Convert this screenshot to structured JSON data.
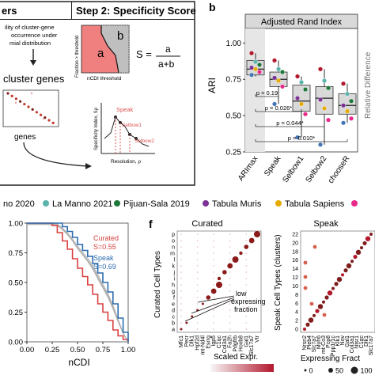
{
  "panel_a": {
    "header_left": "ers",
    "step2_title": "Step 2: Specificity Score",
    "text_line1": "ility of cluster-gene",
    "text_line2": "occurrence under",
    "text_line3": "mial distribution",
    "cluster_genes": "cluster genes",
    "genes_label": "genes",
    "box_a": "a",
    "box_b": "b",
    "box_y_axis": "Fraction > threshold",
    "box_x_axis": "nCDI threshold",
    "formula_lhs": "S =",
    "formula_num": "a",
    "formula_den": "a+b",
    "mini_y_axis": "Specificity Index, Sρ",
    "mini_x_axis": "Resolution, ρ",
    "s_peak": "Speak",
    "s_elbow1": "Selbow1",
    "s_elbow2": "Selbow2"
  },
  "panel_b": {
    "letter": "b",
    "facet_title": "Adjusted Rand Index",
    "ylabel": "ARI",
    "right_cut_label": "Relative Difference",
    "pvals": [
      "p = 0.19",
      "p = 0.026*",
      "p = 0.044*",
      "p = 0.010*"
    ]
  },
  "legend": {
    "items": [
      {
        "label": "no 2020",
        "color": "#b2182b"
      },
      {
        "label": "La Manno 2021",
        "color": "#5ab4ac"
      },
      {
        "label": "Pijuan-Sala 2019",
        "color": "#1b7837"
      },
      {
        "label": "Tabula Muris",
        "color": "#7b3294"
      },
      {
        "label": "Tabula Sapiens",
        "color": "#e6ab02"
      },
      {
        "label": "",
        "color": "#e7298a"
      }
    ]
  },
  "panel_e": {
    "xlabel": "nCDI",
    "curated_label": "Curated",
    "curated_s": "S=0.55",
    "speak_label": "Speak",
    "speak_s": "S=0.69",
    "curated_color": "#d94040",
    "speak_color": "#2b6cb0"
  },
  "panel_f": {
    "letter": "f",
    "title_left": "Curated",
    "title_right": "Speak",
    "ylabel_left": "Curated Cell Types",
    "ylabel_right": "Speak Cell Types (clusters)",
    "annotation": "low expressing fraction",
    "left_y_ticks": [
      "p",
      "o",
      "n",
      "m",
      "l",
      "k",
      "j",
      "i",
      "h",
      "g",
      "f",
      "e",
      "d",
      "c",
      "b",
      "a"
    ],
    "right_y_ticks": [
      "22",
      "20",
      "18",
      "16",
      "14",
      "12",
      "10",
      "8",
      "6",
      "4",
      "2",
      "0"
    ],
    "left_genes": [
      "Mfc1",
      "Pecr",
      "Dlk1",
      "Hpf2d",
      "mt-Nd4l",
      "Esrrg",
      "Igp5",
      "C1qc",
      "Col3a1",
      "Fa2h",
      "Pdgfrb",
      "Hoxb8",
      "Gal1",
      "Slc17a7",
      "Vtr"
    ],
    "right_genes": [
      "Nrsn2",
      "Pleb4",
      "Slc7a7",
      "Myh6",
      "mt-Co3",
      "Pcp8",
      "Ppp1r1c",
      "Klk1",
      "Nov",
      "Gal1",
      "Col3a1",
      "Ntsr1",
      "C1qc",
      "Dlk1",
      "Slc17a7"
    ],
    "legend_scaled_title": "Scaled Expr.",
    "legend_size_title": "Expressing Fract",
    "size_labels": [
      "0",
      "50",
      "100"
    ]
  },
  "chart_data": [
    {
      "type": "box",
      "title": "Adjusted Rand Index",
      "ylabel": "ARI",
      "ylim": [
        0.25,
        1.1
      ],
      "categories": [
        "ARImax",
        "Speak",
        "Selbow1",
        "Selbow2",
        "chooseR"
      ],
      "boxes": [
        {
          "min": 0.77,
          "q1": 0.78,
          "median": 0.82,
          "q3": 0.88,
          "max": 0.93
        },
        {
          "min": 0.58,
          "q1": 0.7,
          "median": 0.75,
          "q3": 0.8,
          "max": 0.88
        },
        {
          "min": 0.35,
          "q1": 0.53,
          "median": 0.6,
          "q3": 0.71,
          "max": 0.77
        },
        {
          "min": 0.3,
          "q1": 0.51,
          "median": 0.62,
          "q3": 0.7,
          "max": 0.82
        },
        {
          "min": 0.45,
          "q1": 0.51,
          "median": 0.57,
          "q3": 0.65,
          "max": 0.72
        }
      ],
      "points": [
        [
          0.93,
          0.87,
          0.85,
          0.83,
          0.82,
          0.8,
          0.78
        ],
        [
          0.88,
          0.82,
          0.8,
          0.76,
          0.74,
          0.7,
          0.58
        ],
        [
          0.77,
          0.73,
          0.68,
          0.62,
          0.58,
          0.51,
          0.35
        ],
        [
          0.82,
          0.74,
          0.69,
          0.61,
          0.55,
          0.47,
          0.3
        ],
        [
          0.72,
          0.65,
          0.6,
          0.57,
          0.53,
          0.48,
          0.45
        ]
      ],
      "yticks": [
        0.25,
        0.5,
        0.75,
        1.0
      ]
    },
    {
      "type": "line",
      "xlabel": "nCDI",
      "xlim": [
        0,
        1
      ],
      "ylim": [
        0,
        1
      ],
      "xticks": [
        0.0,
        0.25,
        0.5,
        0.75,
        1.0
      ],
      "yticks": [
        0.0,
        0.25,
        0.5,
        0.75,
        1.0
      ],
      "series": [
        {
          "name": "Curated",
          "x": [
            0,
            0.05,
            0.1,
            0.15,
            0.2,
            0.25,
            0.3,
            0.35,
            0.4,
            0.45,
            0.5,
            0.55,
            0.6,
            0.65,
            0.7,
            0.75,
            0.8,
            0.85,
            0.9,
            0.95,
            1.0
          ],
          "y": [
            1,
            1,
            1,
            1,
            1,
            0.98,
            0.92,
            0.85,
            0.78,
            0.7,
            0.62,
            0.55,
            0.48,
            0.4,
            0.32,
            0.25,
            0.18,
            0.1,
            0.05,
            0.02,
            0
          ]
        },
        {
          "name": "Speak",
          "x": [
            0,
            0.05,
            0.1,
            0.15,
            0.2,
            0.25,
            0.3,
            0.35,
            0.4,
            0.45,
            0.5,
            0.55,
            0.6,
            0.65,
            0.7,
            0.75,
            0.8,
            0.85,
            0.9,
            0.95,
            1.0
          ],
          "y": [
            1,
            1,
            1,
            1,
            1,
            1,
            1,
            0.97,
            0.93,
            0.88,
            0.82,
            0.77,
            0.72,
            0.66,
            0.58,
            0.5,
            0.42,
            0.32,
            0.2,
            0.08,
            0
          ]
        }
      ]
    }
  ]
}
